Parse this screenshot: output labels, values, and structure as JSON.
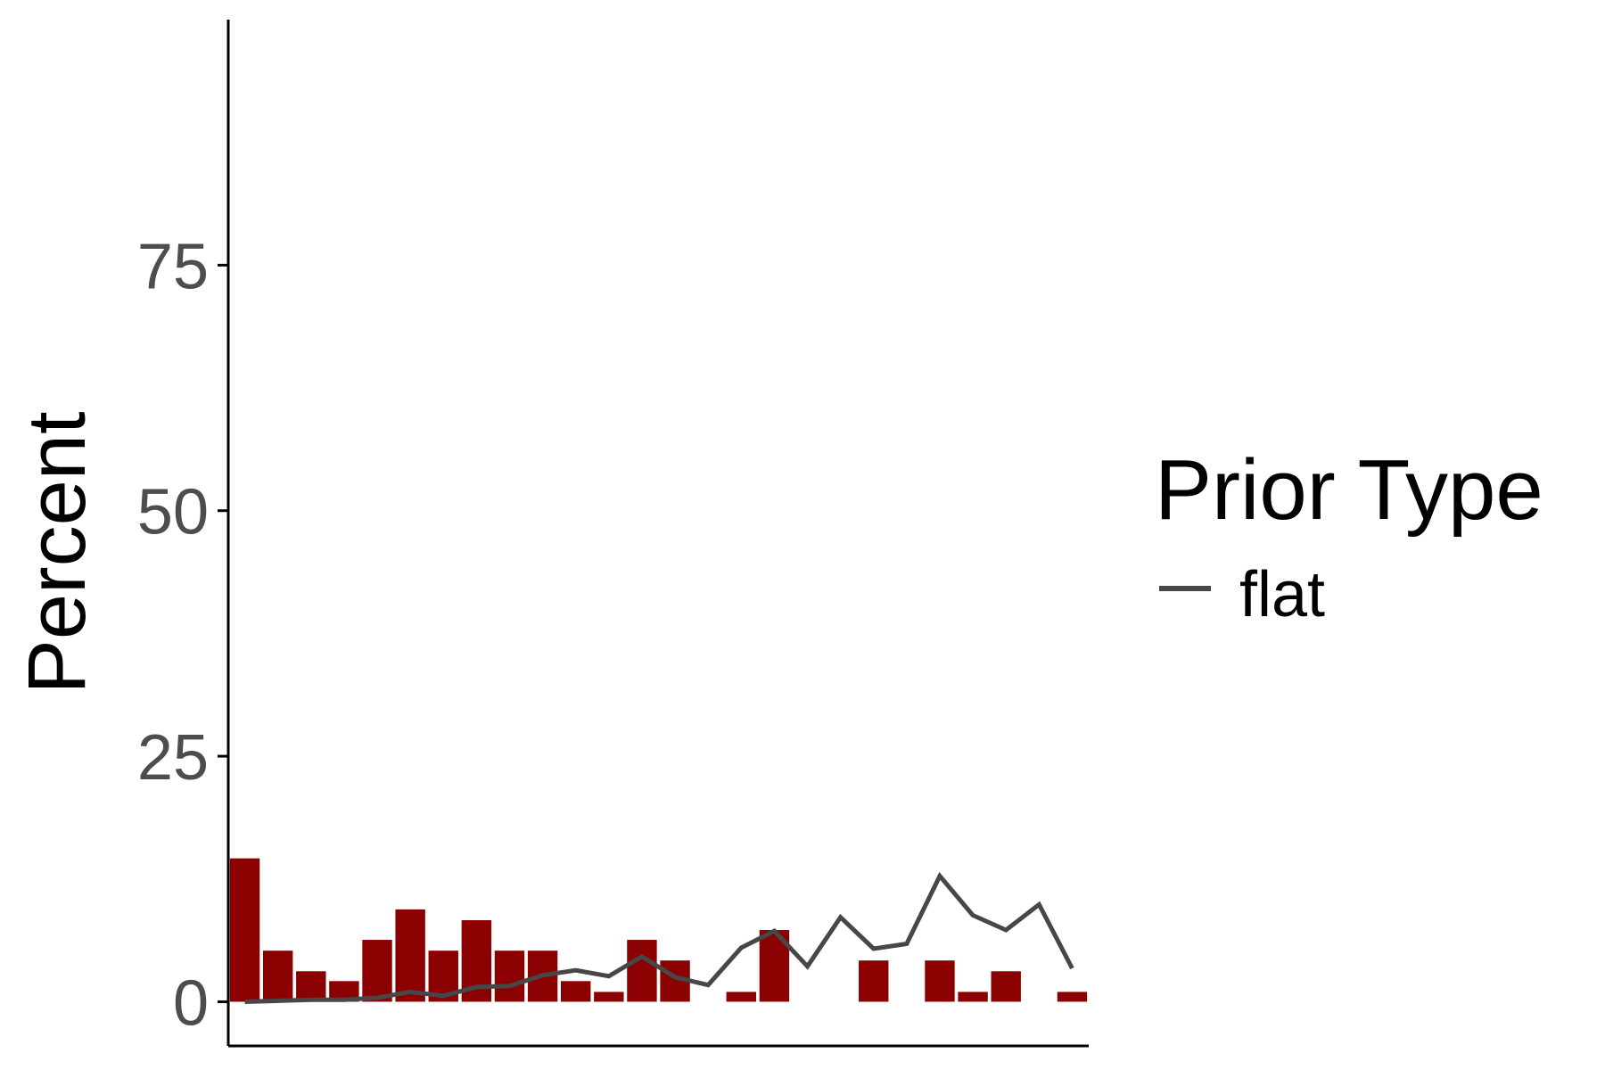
{
  "chart_data": {
    "type": "bar",
    "title": "",
    "xlabel": "",
    "ylabel": "Percent",
    "ylim": [
      -4.5,
      100
    ],
    "yticks": [
      0,
      25,
      50,
      75
    ],
    "ytick_labels": [
      "0",
      "25",
      "50",
      "75"
    ],
    "x": [
      1,
      2,
      3,
      4,
      5,
      6,
      7,
      8,
      9,
      10,
      11,
      12,
      13,
      14,
      15,
      16,
      17,
      18,
      19,
      20,
      21,
      22,
      23,
      24,
      25,
      26
    ],
    "bar_values": [
      14.6,
      5.2,
      3.1,
      2.1,
      6.3,
      9.4,
      5.2,
      8.3,
      5.2,
      5.2,
      2.1,
      1.0,
      6.3,
      4.2,
      0,
      1.0,
      7.3,
      0,
      0,
      4.2,
      0,
      4.2,
      1.0,
      3.1,
      0,
      1.0
    ],
    "bar_color": "#8b0000",
    "series": [
      {
        "name": "flat",
        "color": "#474747",
        "x": [
          1,
          2,
          3,
          4,
          5,
          6,
          7,
          8,
          9,
          10,
          11,
          12,
          13,
          14,
          15,
          16,
          17,
          18,
          19,
          20,
          21,
          22,
          23,
          24,
          25,
          26
        ],
        "values": [
          0,
          0.1,
          0.2,
          0.2,
          0.4,
          1.0,
          0.6,
          1.5,
          1.6,
          2.7,
          3.2,
          2.6,
          4.6,
          2.5,
          1.7,
          5.5,
          7.2,
          3.6,
          8.6,
          5.4,
          5.9,
          12.8,
          8.8,
          7.3,
          9.9,
          3.4
        ]
      }
    ],
    "grid": false,
    "legend": {
      "title": "Prior Type",
      "position": "right",
      "items": [
        {
          "label": "flat",
          "color": "#474747"
        }
      ]
    }
  }
}
